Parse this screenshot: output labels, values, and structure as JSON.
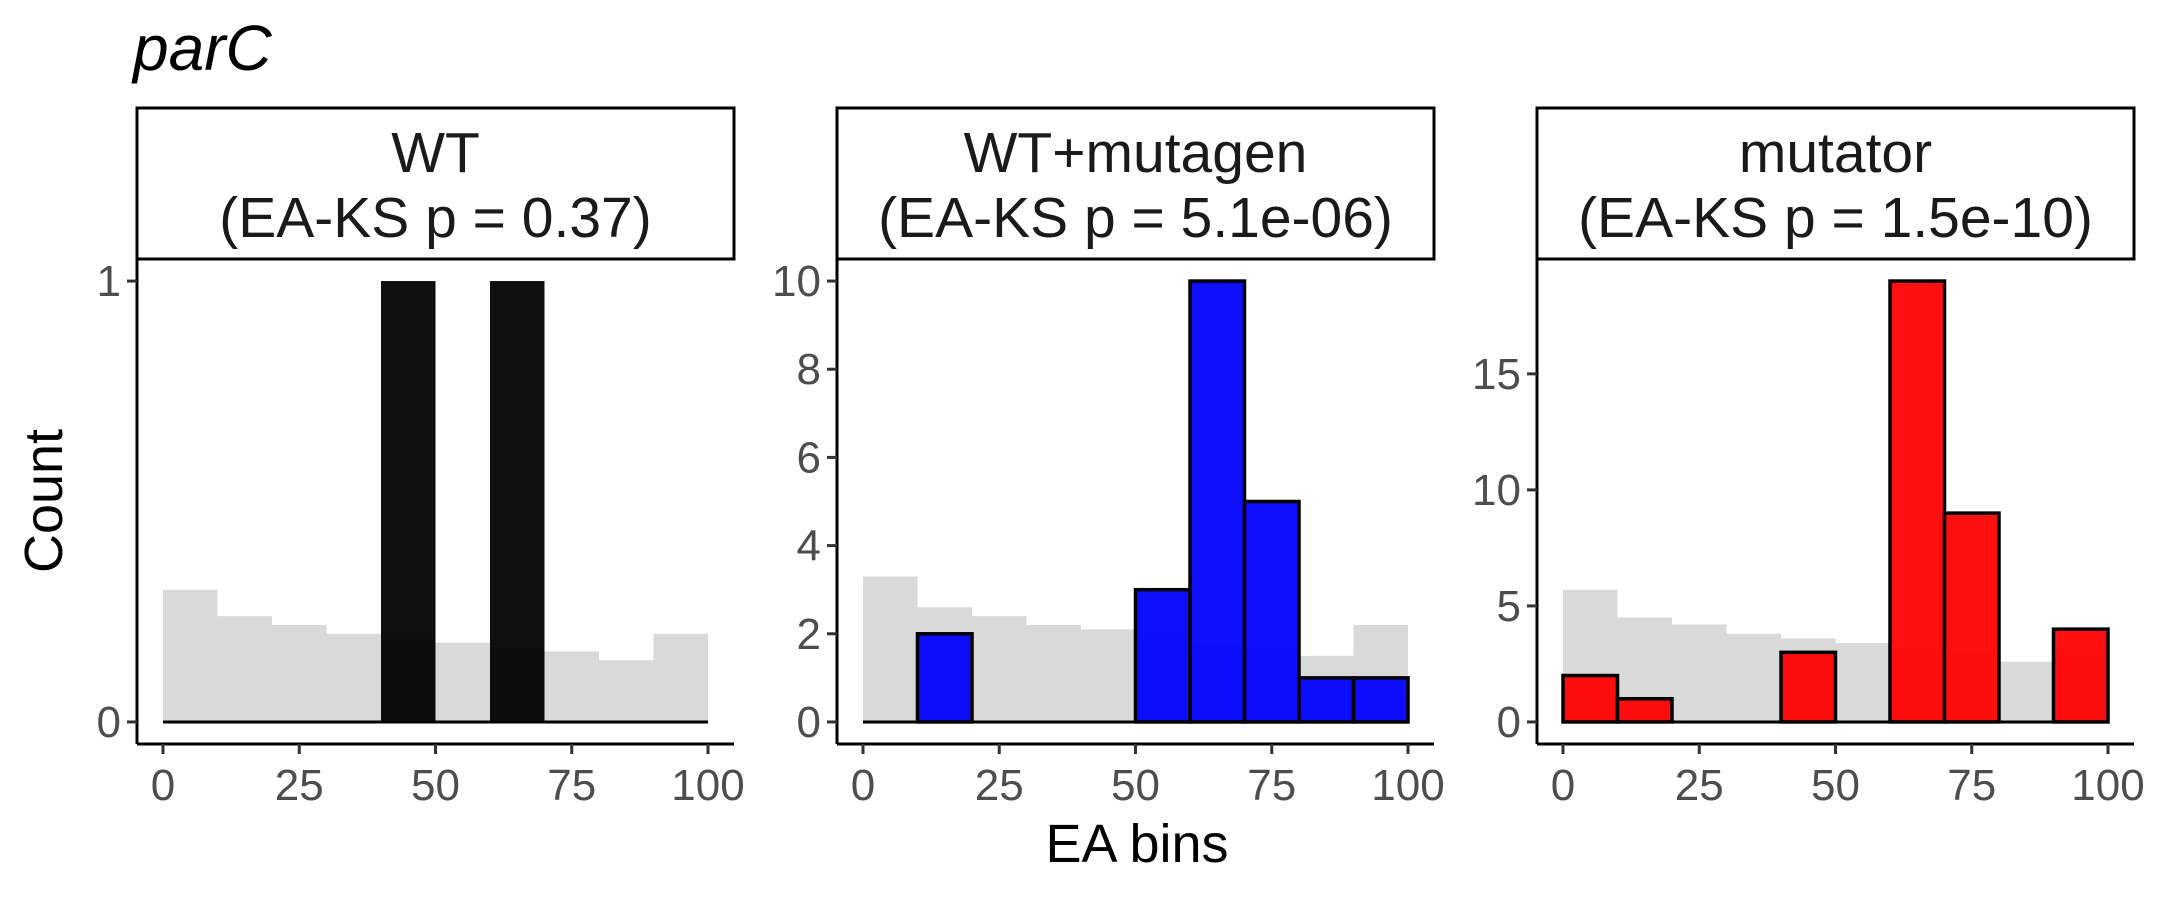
{
  "chart_data": {
    "type": "bar",
    "title": "parC",
    "xlabel": "EA bins",
    "ylabel": "Count",
    "x_ticks": [
      "0",
      "25",
      "50",
      "75",
      "100"
    ],
    "background_color": "#d9d9d9",
    "panels": [
      {
        "strip_line1": "WT",
        "strip_line2": "(EA-KS p = 0.37)",
        "color": "#000000",
        "outlined": false,
        "ylim": [
          -0.05,
          1.05
        ],
        "y_ticks": [
          "0",
          "1"
        ],
        "bin_edges": [
          0,
          10,
          20,
          30,
          40,
          50,
          60,
          70,
          80,
          90,
          100
        ],
        "values": [
          0,
          0,
          0,
          0,
          1,
          0,
          1,
          0,
          0,
          0
        ],
        "background": [
          0.3,
          0.24,
          0.22,
          0.2,
          0.19,
          0.18,
          0.17,
          0.16,
          0.14,
          0.2
        ]
      },
      {
        "strip_line1": "WT+mutagen",
        "strip_line2": "(EA-KS p = 5.1e-06)",
        "color": "#0000ff",
        "outlined": true,
        "ylim": [
          -0.5,
          10.5
        ],
        "y_ticks": [
          "0",
          "2",
          "4",
          "6",
          "8",
          "10"
        ],
        "bin_edges": [
          0,
          10,
          20,
          30,
          40,
          50,
          60,
          70,
          80,
          90,
          100
        ],
        "values": [
          0,
          2,
          0,
          0,
          0,
          3,
          10,
          5,
          1,
          1
        ],
        "background": [
          3.3,
          2.6,
          2.4,
          2.2,
          2.1,
          1.9,
          1.8,
          1.7,
          1.5,
          2.2
        ]
      },
      {
        "strip_line1": "mutator",
        "strip_line2": "(EA-KS p = 1.5e-10)",
        "color": "#ff0000",
        "outlined": true,
        "ylim": [
          -0.95,
          19.95
        ],
        "y_ticks": [
          "0",
          "5",
          "10",
          "15"
        ],
        "bin_edges": [
          0,
          10,
          20,
          30,
          40,
          50,
          60,
          70,
          80,
          90,
          100
        ],
        "values": [
          2,
          1,
          0,
          0,
          3,
          0,
          19,
          9,
          0,
          4
        ],
        "background": [
          5.7,
          4.5,
          4.2,
          3.8,
          3.6,
          3.4,
          3.2,
          3.0,
          2.6,
          2.9
        ]
      }
    ]
  }
}
